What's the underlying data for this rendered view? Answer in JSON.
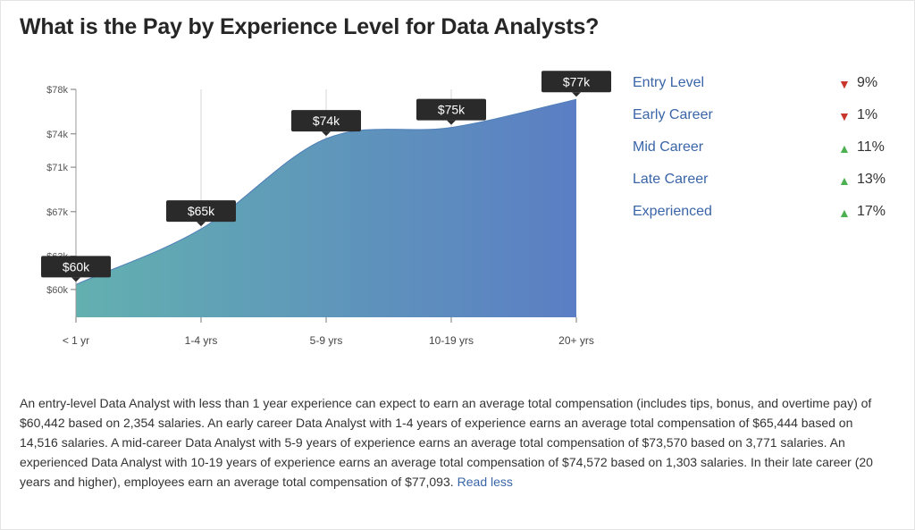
{
  "page": {
    "title": "What is the Pay by Experience Level for Data Analysts?"
  },
  "chart_data": {
    "type": "area",
    "categories": [
      "< 1 yr",
      "1-4 yrs",
      "5-9 yrs",
      "10-19 yrs",
      "20+ yrs"
    ],
    "values": [
      60442,
      65444,
      73570,
      74572,
      77093
    ],
    "value_labels": [
      "$60k",
      "$65k",
      "$74k",
      "$75k",
      "$77k"
    ],
    "y_ticks": [
      60000,
      63000,
      67000,
      71000,
      74000,
      78000
    ],
    "y_tick_labels": [
      "$60k",
      "$63k",
      "$67k",
      "$71k",
      "$74k",
      "$78k"
    ],
    "ylim": [
      57500,
      78000
    ],
    "grid": "vertical",
    "colors": {
      "gradient_start": "#63b0b0",
      "gradient_end": "#5b7ec4",
      "label_bg": "#2a2a2a"
    }
  },
  "legend": [
    {
      "label": "Entry Level",
      "direction": "down",
      "arrow": "▼",
      "pct": "9%"
    },
    {
      "label": "Early Career",
      "direction": "down",
      "arrow": "▼",
      "pct": "1%"
    },
    {
      "label": "Mid Career",
      "direction": "up",
      "arrow": "▲",
      "pct": "11%"
    },
    {
      "label": "Late Career",
      "direction": "up",
      "arrow": "▲",
      "pct": "13%"
    },
    {
      "label": "Experienced",
      "direction": "up",
      "arrow": "▲",
      "pct": "17%"
    }
  ],
  "description": {
    "text": "An entry-level Data Analyst with less than 1 year experience can expect to earn an average total compensation (includes tips, bonus, and overtime pay) of $60,442 based on 2,354 salaries. An early career Data Analyst with 1-4 years of experience earns an average total compensation of $65,444 based on 14,516 salaries. A mid-career Data Analyst with 5-9 years of experience earns an average total compensation of $73,570 based on 3,771 salaries. An experienced Data Analyst with 10-19 years of experience earns an average total compensation of $74,572 based on 1,303 salaries. In their late career (20 years and higher), employees earn an average total compensation of $77,093.",
    "read_less": "Read less"
  }
}
